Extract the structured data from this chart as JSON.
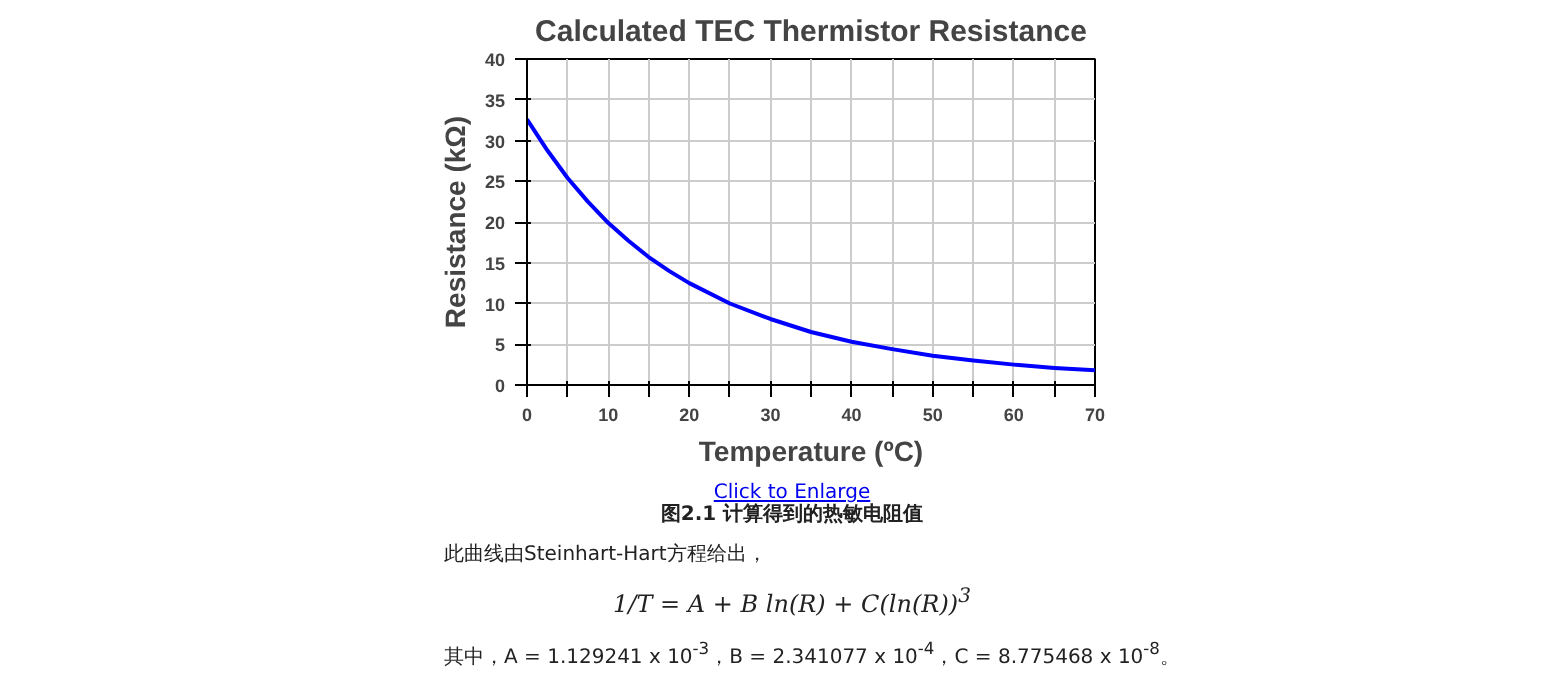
{
  "chart_data": {
    "type": "line",
    "title": "Calculated TEC Thermistor Resistance",
    "xlabel": "Temperature (ºC)",
    "ylabel": "Resistance (kΩ)",
    "x": [
      0,
      2.5,
      5,
      7.5,
      10,
      12.5,
      15,
      17.5,
      20,
      25,
      30,
      35,
      40,
      45,
      50,
      55,
      60,
      65,
      70
    ],
    "series": [
      {
        "color": "#0000ff",
        "values": [
          32.6,
          28.8,
          25.4,
          22.5,
          19.9,
          17.7,
          15.7,
          14.0,
          12.5,
          10.0,
          8.1,
          6.5,
          5.3,
          4.4,
          3.6,
          3.0,
          2.5,
          2.1,
          1.8
        ]
      }
    ],
    "xlim": [
      0,
      70
    ],
    "ylim": [
      0,
      40
    ],
    "xticks": [
      0,
      {
        "value": 5,
        "label": null
      },
      10,
      {
        "value": 15,
        "label": null
      },
      20,
      {
        "value": 25,
        "label": null
      },
      30,
      {
        "value": 35,
        "label": null
      },
      40,
      {
        "value": 45,
        "label": null
      },
      50,
      {
        "value": 55,
        "label": null
      },
      60,
      {
        "value": 65,
        "label": null
      },
      70
    ],
    "yticks": [
      0,
      5,
      10,
      15,
      20,
      25,
      30,
      35,
      40
    ],
    "grid": true,
    "marker": "none",
    "line_style": "solid",
    "annotations": [
      "Click to Enlarge",
      "图2.1  计算得到的热敏电阻值",
      "此曲线由Steinhart-Hart方程给出，",
      "1/T = A + B ln(R) + C(ln(R))$^{3}$",
      "其中，A = 1.129241 x 10$^{-3}$，B = 2.341077 x 10$^{-4}$，C = 8.775468 x 10$^{-8}$。"
    ]
  }
}
